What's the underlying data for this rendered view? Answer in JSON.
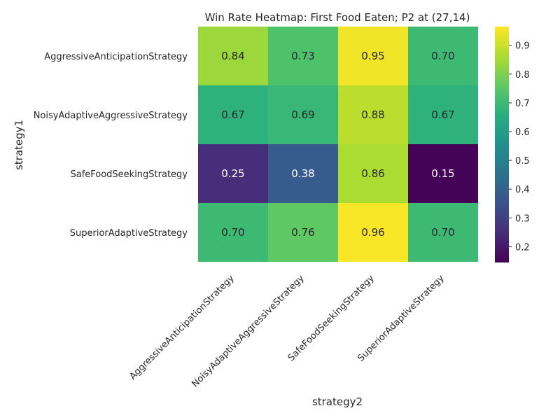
{
  "chart_data": {
    "type": "heatmap",
    "title": "Win Rate Heatmap: First Food Eaten; P2 at (27,14)",
    "xlabel": "strategy2",
    "ylabel": "strategy1",
    "x_categories": [
      "AggressiveAnticipationStrategy",
      "NoisyAdaptiveAggressiveStrategy",
      "SafeFoodSeekingStrategy",
      "SuperiorAdaptiveStrategy"
    ],
    "y_categories": [
      "AggressiveAnticipationStrategy",
      "NoisyAdaptiveAggressiveStrategy",
      "SafeFoodSeekingStrategy",
      "SuperiorAdaptiveStrategy"
    ],
    "values": [
      [
        0.84,
        0.73,
        0.95,
        0.7
      ],
      [
        0.67,
        0.69,
        0.88,
        0.67
      ],
      [
        0.25,
        0.38,
        0.86,
        0.15
      ],
      [
        0.7,
        0.76,
        0.96,
        0.7
      ]
    ],
    "value_labels": [
      [
        "0.84",
        "0.73",
        "0.95",
        "0.70"
      ],
      [
        "0.67",
        "0.69",
        "0.88",
        "0.67"
      ],
      [
        "0.25",
        "0.38",
        "0.86",
        "0.15"
      ],
      [
        "0.70",
        "0.76",
        "0.96",
        "0.70"
      ]
    ],
    "colormap": "viridis",
    "color_range": [
      0.145,
      0.965
    ],
    "colorbar_ticks": [
      "0.2",
      "0.3",
      "0.4",
      "0.5",
      "0.6",
      "0.7",
      "0.8",
      "0.9"
    ]
  }
}
